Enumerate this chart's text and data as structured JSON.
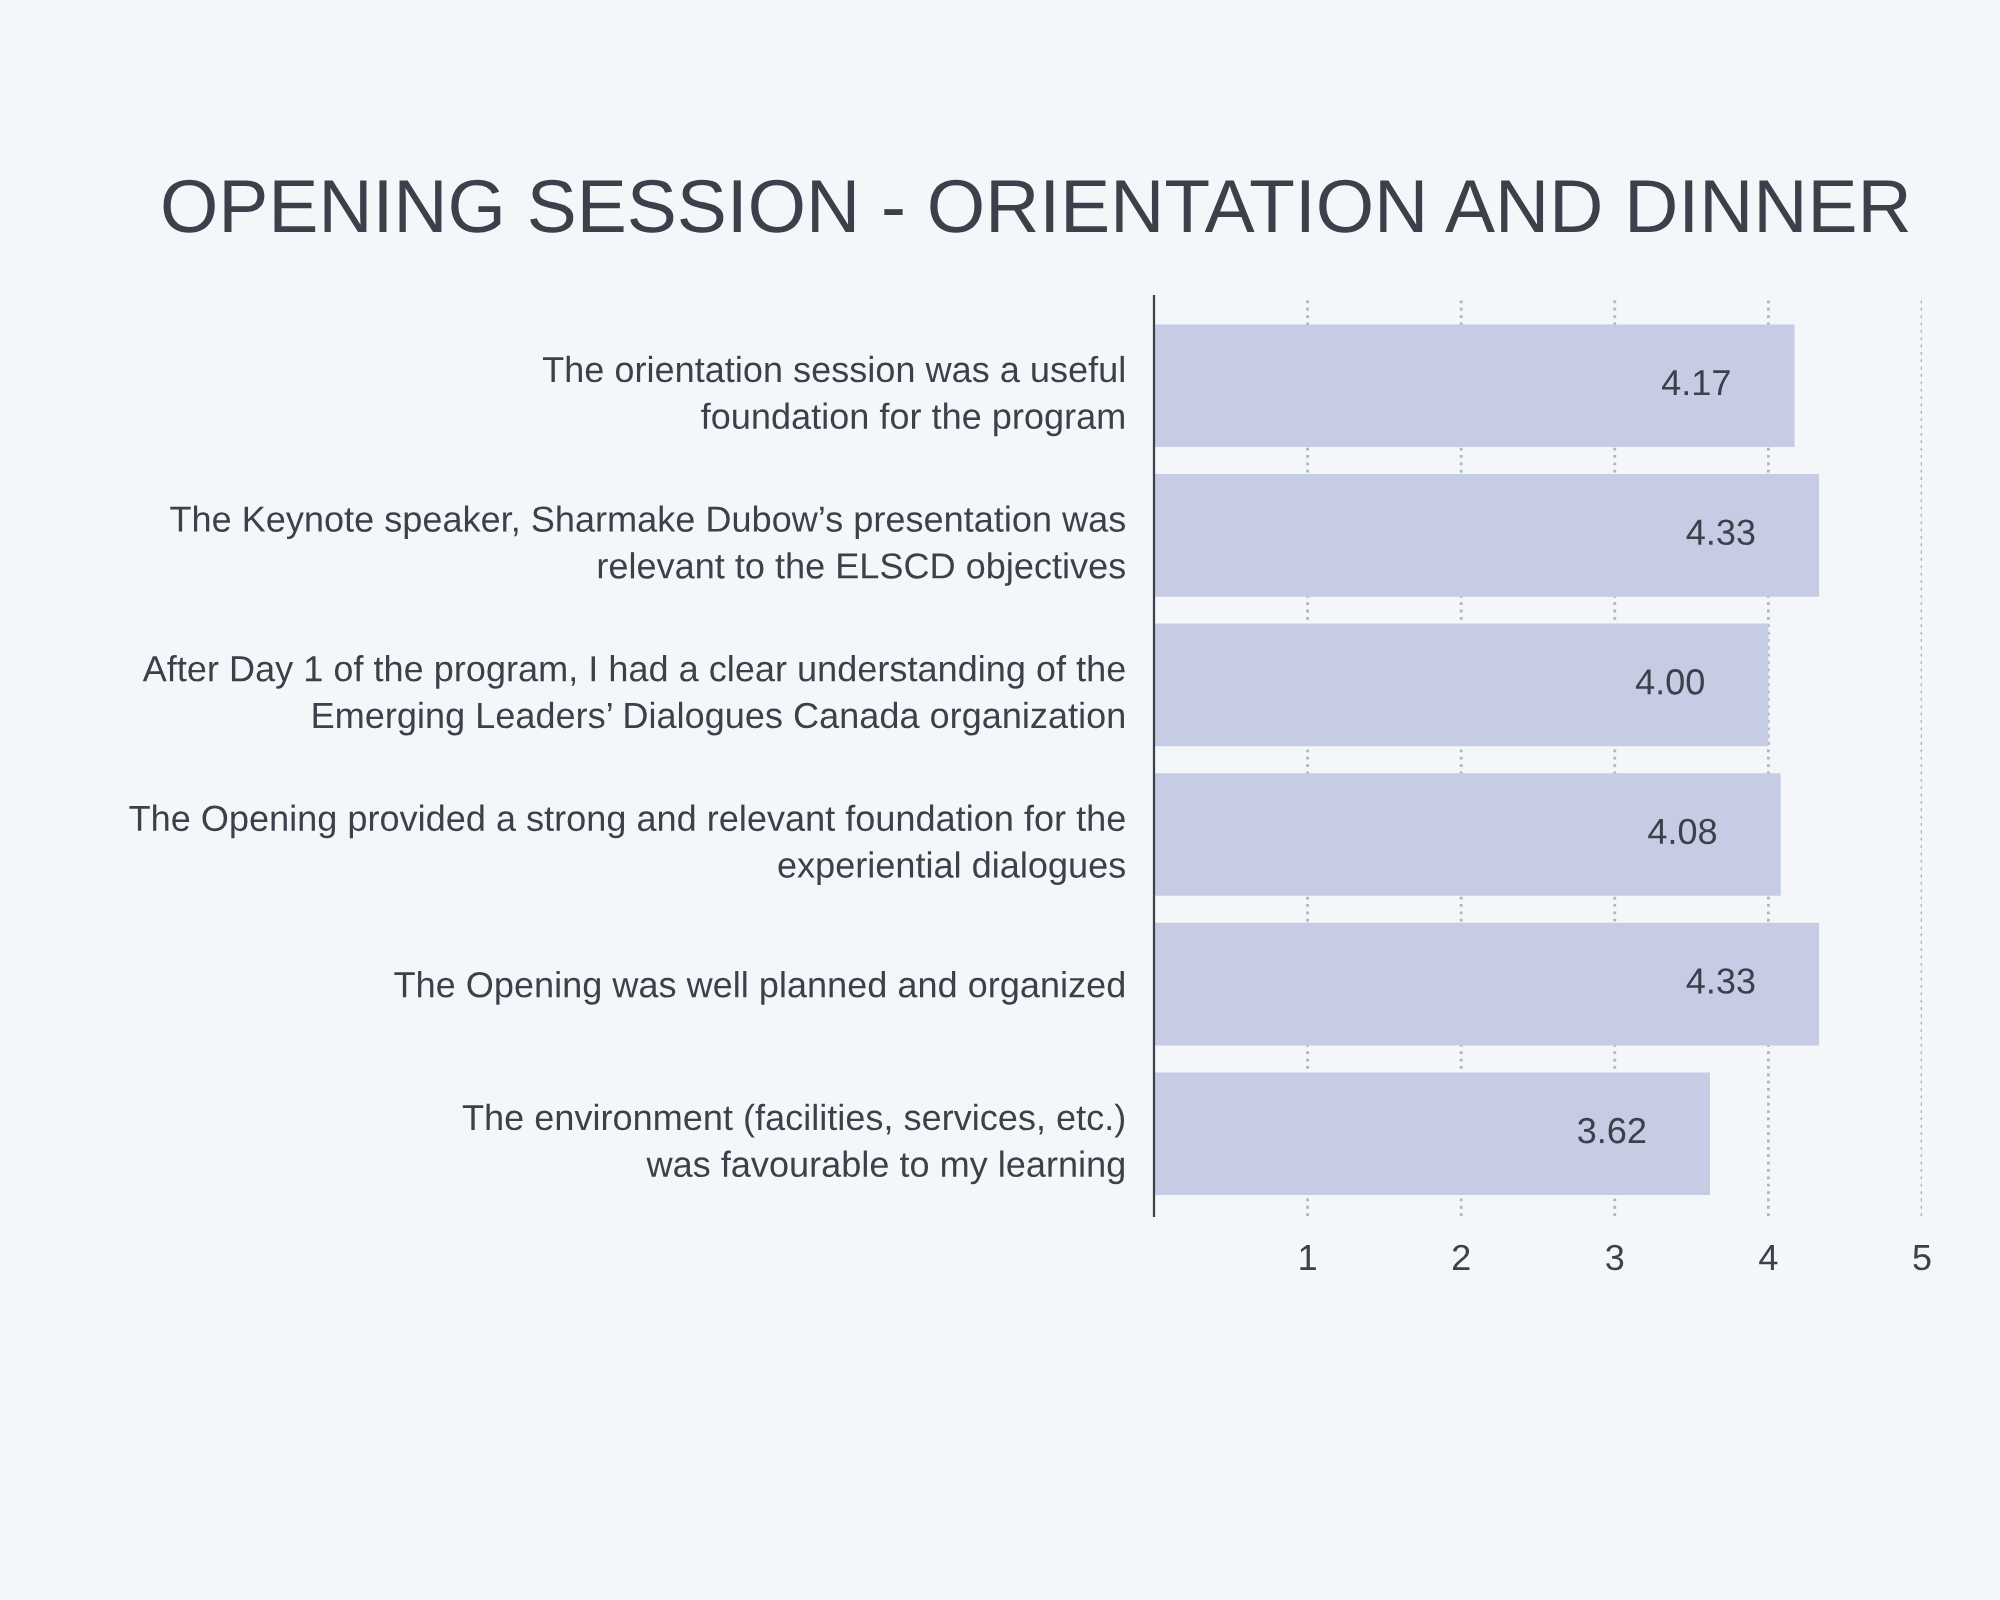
{
  "chart_data": {
    "type": "bar",
    "orientation": "horizontal",
    "title": "OPENING SESSION - ORIENTATION AND DINNER",
    "categories": [
      "The orientation session was a useful\nfoundation for the program",
      "The Keynote speaker, Sharmake Dubow’s presentation was\nrelevant to the ELSCD objectives",
      "After Day 1 of the program, I had a clear understanding of the\nEmerging Leaders’ Dialogues Canada organization",
      "The Opening provided a strong and relevant foundation for the\nexperiential dialogues",
      "The Opening was well planned and organized",
      "The environment (facilities, services, etc.)\nwas favourable to my learning"
    ],
    "values": [
      4.17,
      4.33,
      4.0,
      4.08,
      4.33,
      3.62
    ],
    "value_labels": [
      "4.17",
      "4.33",
      "4.00",
      "4.08",
      "4.33",
      "3.62"
    ],
    "color": "#c6cce4",
    "xlim": [
      0,
      5
    ],
    "xticks": [
      1,
      2,
      3,
      4,
      5
    ],
    "grid": "x"
  }
}
